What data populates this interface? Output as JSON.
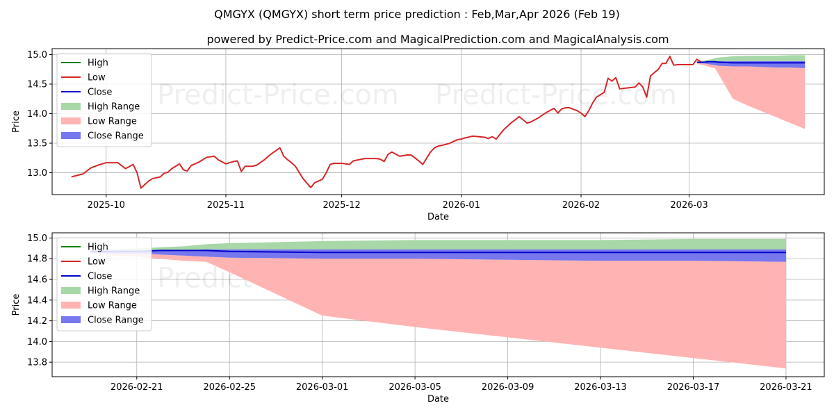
{
  "title_line1": "QMGYX (QMGYX) short term price prediction : Feb,Mar,Apr 2026 (Feb 19)",
  "title_line2": "powered by Predict-Price.com and MagicalPrediction.com and MagicalAnalysis.com",
  "watermark": "Predict-Price.com",
  "colors": {
    "high": "#008000",
    "low": "#d62728",
    "close": "#0000cc",
    "high_range": "#a8d8a8",
    "low_range": "#ffb3b3",
    "close_range": "#7777ee",
    "grid": "#b0b0b0"
  },
  "legend": [
    "High",
    "Low",
    "Close",
    "High Range",
    "Low Range",
    "Close Range"
  ],
  "chart_data": [
    {
      "type": "line",
      "name": "history",
      "xlabel": "Date",
      "ylabel": "Price",
      "x_ticks": [
        "2025-10",
        "2025-11",
        "2025-12",
        "2026-01",
        "2026-02",
        "2026-03"
      ],
      "x_tick_days": [
        9,
        40,
        70,
        101,
        132,
        160
      ],
      "xlim_days": [
        -5,
        195
      ],
      "ylim": [
        12.63,
        15.1
      ],
      "y_ticks": [
        "13.0",
        "13.5",
        "14.0",
        "14.5",
        "15.0"
      ],
      "y_tick_values": [
        13.0,
        13.5,
        14.0,
        14.5,
        15.0
      ],
      "low_series": {
        "day": [
          0,
          3,
          5,
          7,
          9,
          10,
          11,
          12,
          14,
          16,
          17,
          18,
          19,
          20,
          21,
          23,
          24,
          25,
          26,
          28,
          29,
          30,
          31,
          33,
          34,
          35,
          37,
          38,
          40,
          41,
          42,
          43,
          44,
          45,
          47,
          48,
          50,
          51,
          52,
          54,
          55,
          56,
          57,
          58,
          60,
          62,
          63,
          64,
          65,
          66,
          67,
          68,
          70,
          71,
          72,
          73,
          76,
          79,
          80,
          81,
          82,
          83,
          85,
          86,
          87,
          88,
          90,
          91,
          93,
          94,
          95,
          97,
          98,
          100,
          101,
          102,
          104,
          107,
          108,
          109,
          110,
          111,
          112,
          114,
          115,
          116,
          118,
          119,
          121,
          123,
          125,
          126,
          127,
          128,
          129,
          131,
          132,
          133,
          134,
          135,
          136,
          138,
          139,
          140,
          141,
          142,
          146,
          147,
          148,
          149
        ],
        "value": [
          12.93,
          12.98,
          13.08,
          13.13,
          13.17,
          13.17,
          13.17,
          13.17,
          13.07,
          13.14,
          13.0,
          12.74,
          12.8,
          12.86,
          12.9,
          12.93,
          12.99,
          13.01,
          13.07,
          13.15,
          13.05,
          13.03,
          13.12,
          13.18,
          13.22,
          13.26,
          13.28,
          13.22,
          13.15,
          13.17,
          13.19,
          13.2,
          13.02,
          13.11,
          13.11,
          13.13,
          13.22,
          13.28,
          13.33,
          13.42,
          13.28,
          13.22,
          13.17,
          13.11,
          12.9,
          12.75,
          12.83,
          12.86,
          12.89,
          13.0,
          13.14,
          13.16,
          13.16,
          13.15,
          13.14,
          13.2,
          13.24,
          13.24,
          13.23,
          13.19,
          13.31,
          13.35,
          13.28,
          13.29,
          13.3,
          13.3,
          13.2,
          13.14,
          13.35,
          13.42,
          13.45,
          13.48,
          13.5,
          13.56,
          13.57,
          13.59,
          13.62,
          13.6,
          13.58,
          13.61,
          13.57,
          13.65,
          13.73,
          13.85,
          13.9,
          13.95,
          13.84,
          13.86,
          13.93,
          14.02,
          14.09,
          14.01,
          14.08,
          14.1,
          14.1,
          14.05,
          14.01,
          13.95,
          14.05,
          14.18,
          14.28,
          14.36,
          14.6,
          14.55,
          14.61,
          14.42,
          14.45,
          14.52,
          14.45,
          14.28
        ]
      },
      "low_series_2": {
        "day": [
          149,
          150,
          152,
          153,
          154,
          155,
          156,
          157,
          161,
          162,
          163
        ],
        "value": [
          14.28,
          14.64,
          14.75,
          14.85,
          14.85,
          14.97,
          14.82,
          14.83,
          14.83,
          14.92,
          14.88
        ]
      },
      "forecast_start_day": 162,
      "forecast_end_day": 190
    },
    {
      "type": "area",
      "name": "forecast",
      "xlabel": "Date",
      "ylabel": "Price",
      "x_ticks": [
        "2026-02-21",
        "2026-02-25",
        "2026-03-01",
        "2026-03-05",
        "2026-03-09",
        "2026-03-13",
        "2026-03-17",
        "2026-03-21"
      ],
      "x_tick_days": [
        2,
        6,
        10,
        14,
        18,
        22,
        26,
        30
      ],
      "xlim_days": [
        -1.65,
        31.65
      ],
      "ylim": [
        13.66,
        15.05
      ],
      "y_ticks": [
        "13.8",
        "14.0",
        "14.2",
        "14.4",
        "14.6",
        "14.8",
        "15.0"
      ],
      "y_tick_values": [
        13.8,
        14.0,
        14.2,
        14.4,
        14.6,
        14.8,
        15.0
      ],
      "forecast": {
        "day": [
          0,
          1,
          2,
          3,
          4,
          5,
          6,
          10,
          14,
          18,
          22,
          26,
          30
        ],
        "high_range_top": [
          14.88,
          14.89,
          14.9,
          14.91,
          14.92,
          14.94,
          14.95,
          14.97,
          14.98,
          14.98,
          14.98,
          14.99,
          14.99
        ],
        "high": [
          14.89,
          14.89,
          14.9,
          14.9,
          14.9,
          14.9,
          14.9,
          14.9,
          14.9,
          14.9,
          14.9,
          14.9,
          14.9
        ],
        "close_range_top": [
          14.88,
          14.88,
          14.88,
          14.88,
          14.88,
          14.89,
          14.89,
          14.89,
          14.89,
          14.89,
          14.89,
          14.89,
          14.89
        ],
        "close": [
          14.87,
          14.87,
          14.87,
          14.88,
          14.88,
          14.88,
          14.87,
          14.86,
          14.86,
          14.86,
          14.86,
          14.86,
          14.86
        ],
        "close_range_bottom": [
          14.86,
          14.85,
          14.85,
          14.84,
          14.83,
          14.82,
          14.81,
          14.8,
          14.8,
          14.79,
          14.78,
          14.78,
          14.77
        ],
        "low_range_bottom": [
          14.85,
          14.83,
          14.82,
          14.8,
          14.78,
          14.77,
          14.67,
          14.25,
          14.14,
          14.04,
          13.94,
          13.84,
          13.74
        ]
      }
    }
  ]
}
